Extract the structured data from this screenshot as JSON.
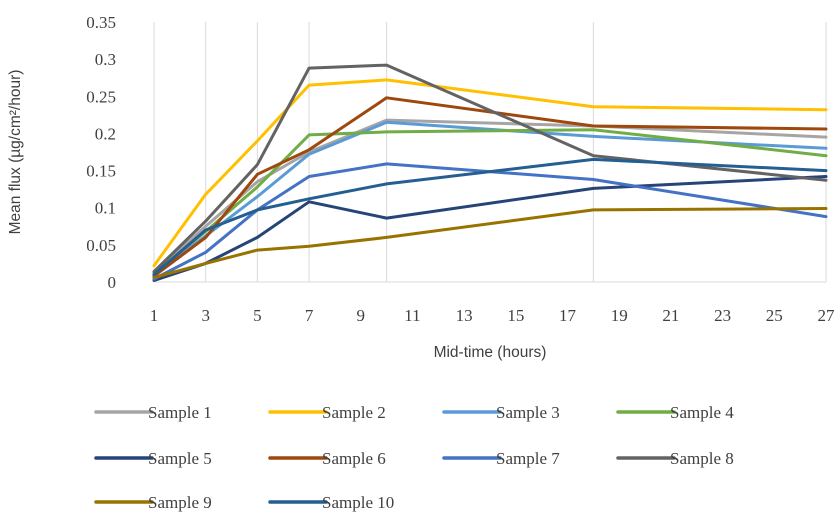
{
  "chart_data": {
    "type": "line",
    "xlabel": "Mid-time (hours)",
    "ylabel": "Mean flux (µg/cm²/hour)",
    "xlim": [
      1,
      27
    ],
    "ylim": [
      0,
      0.35
    ],
    "x_ticks": [
      "1",
      "3",
      "5",
      "7",
      "9",
      "11",
      "13",
      "15",
      "17",
      "19",
      "21",
      "23",
      "25",
      "27"
    ],
    "y_ticks": [
      "0",
      "0.05",
      "0.1",
      "0.15",
      "0.2",
      "0.25",
      "0.3",
      "0.35"
    ],
    "grid": "vertical",
    "legend": "bottom",
    "x": [
      1,
      3,
      5,
      7,
      10,
      18,
      27
    ],
    "series": [
      {
        "name": "Sample 1",
        "color": "#A5A5A5",
        "values": [
          0.012,
          0.075,
          0.135,
          0.175,
          0.218,
          0.21,
          0.195
        ]
      },
      {
        "name": "Sample 2",
        "color": "#FFC000",
        "values": [
          0.022,
          0.118,
          0.19,
          0.265,
          0.272,
          0.236,
          0.232
        ]
      },
      {
        "name": "Sample 3",
        "color": "#5B9BD5",
        "values": [
          0.01,
          0.062,
          0.115,
          0.172,
          0.215,
          0.196,
          0.18
        ]
      },
      {
        "name": "Sample 4",
        "color": "#70AD47",
        "values": [
          0.012,
          0.068,
          0.128,
          0.198,
          0.202,
          0.205,
          0.17
        ]
      },
      {
        "name": "Sample 5",
        "color": "#264478",
        "values": [
          0.002,
          0.025,
          0.06,
          0.108,
          0.086,
          0.126,
          0.142
        ]
      },
      {
        "name": "Sample 6",
        "color": "#9E480E",
        "values": [
          0.008,
          0.06,
          0.145,
          0.178,
          0.248,
          0.21,
          0.206
        ]
      },
      {
        "name": "Sample 7",
        "color": "#4472C4",
        "values": [
          0.004,
          0.04,
          0.097,
          0.142,
          0.159,
          0.138,
          0.088
        ]
      },
      {
        "name": "Sample 8",
        "color": "#636363",
        "values": [
          0.014,
          0.082,
          0.158,
          0.288,
          0.292,
          0.17,
          0.137
        ]
      },
      {
        "name": "Sample 9",
        "color": "#997300",
        "values": [
          0.006,
          0.025,
          0.043,
          0.048,
          0.06,
          0.097,
          0.099
        ]
      },
      {
        "name": "Sample 10",
        "color": "#255E91",
        "values": [
          0.01,
          0.07,
          0.097,
          0.112,
          0.132,
          0.165,
          0.15
        ]
      }
    ]
  }
}
